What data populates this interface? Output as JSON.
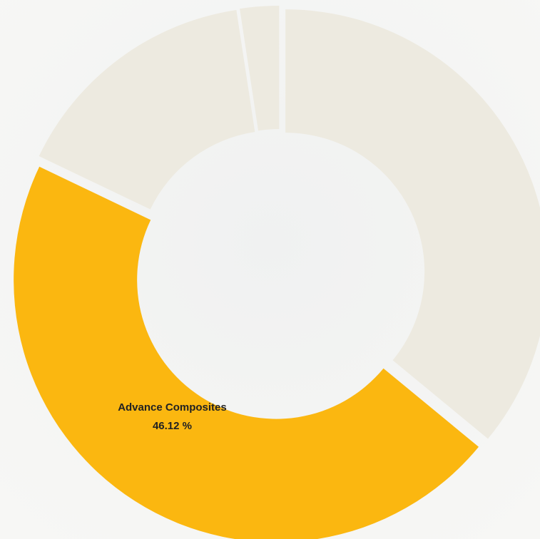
{
  "chart_data": {
    "type": "donut",
    "categories": [
      null,
      "Advance Composites",
      null,
      null
    ],
    "values": [
      35.98,
      46.12,
      15.5,
      2.4
    ],
    "value_labels": [
      null,
      "46.12 %",
      null,
      null
    ],
    "colors": [
      "#edeae0",
      "#fbb710",
      "#edeae0",
      "#edeae0"
    ],
    "start_angle": 0,
    "direction": "clockwise"
  }
}
